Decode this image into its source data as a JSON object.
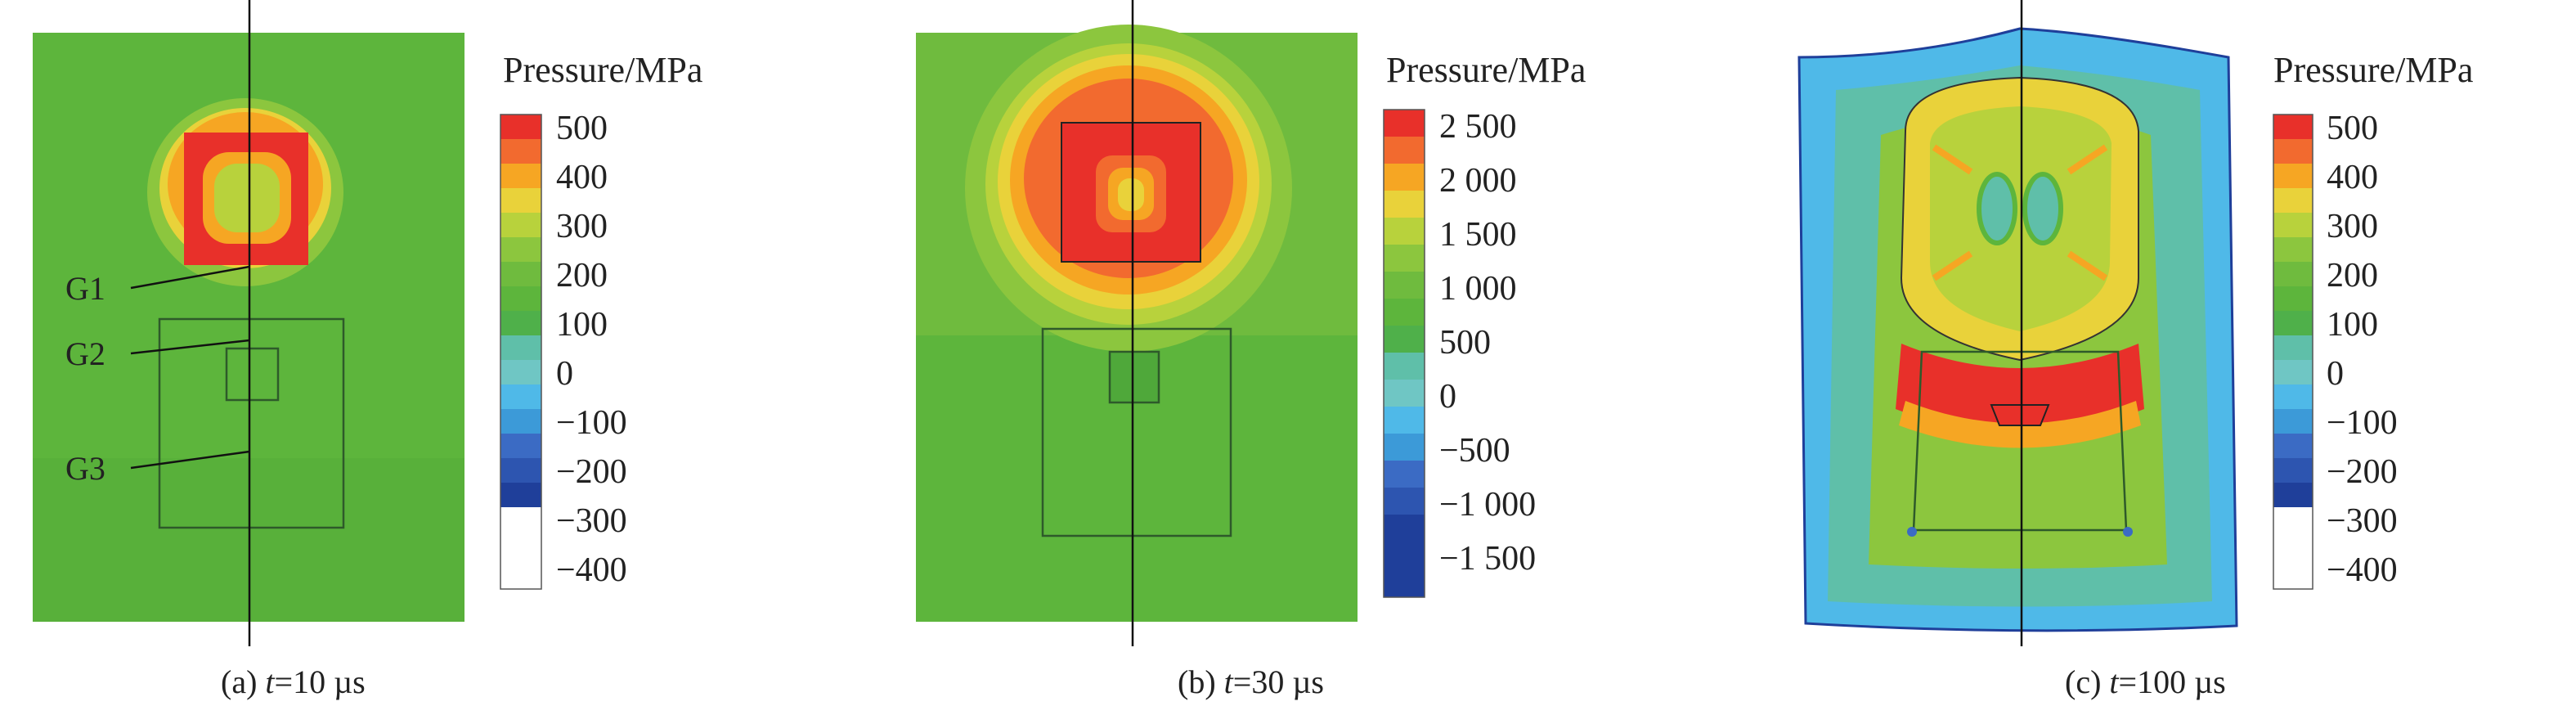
{
  "panels": [
    {
      "legend_title": "Pressure/MPa",
      "ticks": [
        "500",
        "400",
        "300",
        "200",
        "100",
        "0",
        "−100",
        "−200",
        "−300",
        "−400"
      ],
      "caption_prefix": "(a) ",
      "caption_var": "t",
      "caption_suffix": "=10 µs",
      "gauges": [
        "G1",
        "G2",
        "G3"
      ]
    },
    {
      "legend_title": "Pressure/MPa",
      "ticks": [
        "2 500",
        "2 000",
        "1 500",
        "1 000",
        "500",
        "0",
        "−500",
        "−1 000",
        "−1 500"
      ],
      "caption_prefix": "(b) ",
      "caption_var": "t",
      "caption_suffix": "=30 µs"
    },
    {
      "legend_title": "Pressure/MPa",
      "ticks": [
        "500",
        "400",
        "300",
        "200",
        "100",
        "0",
        "−100",
        "−200",
        "−300",
        "−400"
      ],
      "caption_prefix": "(c) ",
      "caption_var": "t",
      "caption_suffix": "=100 µs"
    }
  ],
  "colors": {
    "red": "#e8302a",
    "orange_red": "#f26a2f",
    "orange": "#f6a623",
    "yellow": "#e9d23a",
    "yellow_green": "#b8d23c",
    "light_green": "#8cc63e",
    "green": "#5db53c",
    "teal": "#5fbfa9",
    "cyan": "#4fb9e8",
    "blue": "#3b6bc4",
    "dark_blue": "#1f3f9a"
  }
}
